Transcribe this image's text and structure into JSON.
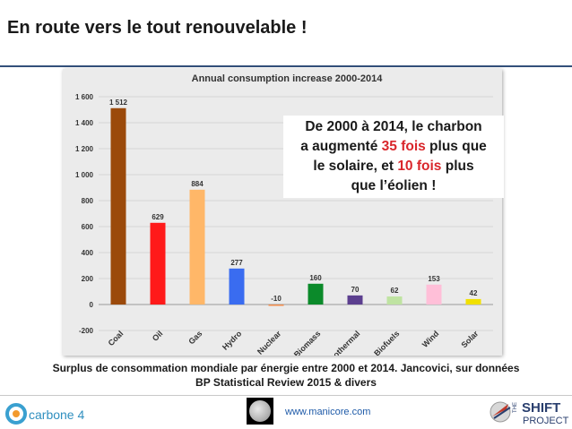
{
  "slide": {
    "title": "En route vers le tout renouvelable !",
    "caption_line1": "Surplus de consommation mondiale par énergie entre 2000 et 2014. Jancovici, sur données",
    "caption_line2": "BP Statistical Review 2015 & divers"
  },
  "callout": {
    "l1": "De 2000 à 2014, le charbon",
    "l2a": "a augmenté ",
    "l2h": "35 fois",
    "l2b": " plus que",
    "l3a": "le solaire, et ",
    "l3h": "10 fois",
    "l3b": " plus",
    "l4": "que l’éolien !"
  },
  "footer": {
    "left_logo": "carbone 4",
    "url": "www.manicore.com",
    "right_logo_the": "THE",
    "right_logo_shift": "SHIFT",
    "right_logo_project": "PROJECT"
  },
  "chart_data": {
    "type": "bar",
    "title": "Annual consumption increase 2000-2014",
    "categories": [
      "Coal",
      "Oil",
      "Gas",
      "Hydro",
      "Nuclear",
      "Biomass",
      "Geothermal",
      "Biofuels",
      "Wind",
      "Solar"
    ],
    "values": [
      1512,
      629,
      884,
      277,
      -10,
      160,
      70,
      62,
      153,
      42
    ],
    "value_labels": [
      "1 512",
      "629",
      "884",
      "277",
      "-10",
      "160",
      "70",
      "62",
      "153",
      "42"
    ],
    "colors": [
      "#9b4a0b",
      "#ff1a1a",
      "#ffb768",
      "#3a6cf0",
      "#f08a4a",
      "#0b8a2a",
      "#5c3f8f",
      "#bfe3a2",
      "#ffbfd8",
      "#f1e000"
    ],
    "yticks": [
      1600,
      1400,
      1200,
      1000,
      800,
      600,
      400,
      200,
      0,
      -200
    ],
    "ytick_labels": [
      "1 600",
      "1 400",
      "1 200",
      "1 000",
      "800",
      "600",
      "400",
      "200",
      "0",
      "-200"
    ],
    "ylim": [
      -200,
      1600
    ],
    "grid": true,
    "xlabel": "",
    "ylabel": ""
  }
}
